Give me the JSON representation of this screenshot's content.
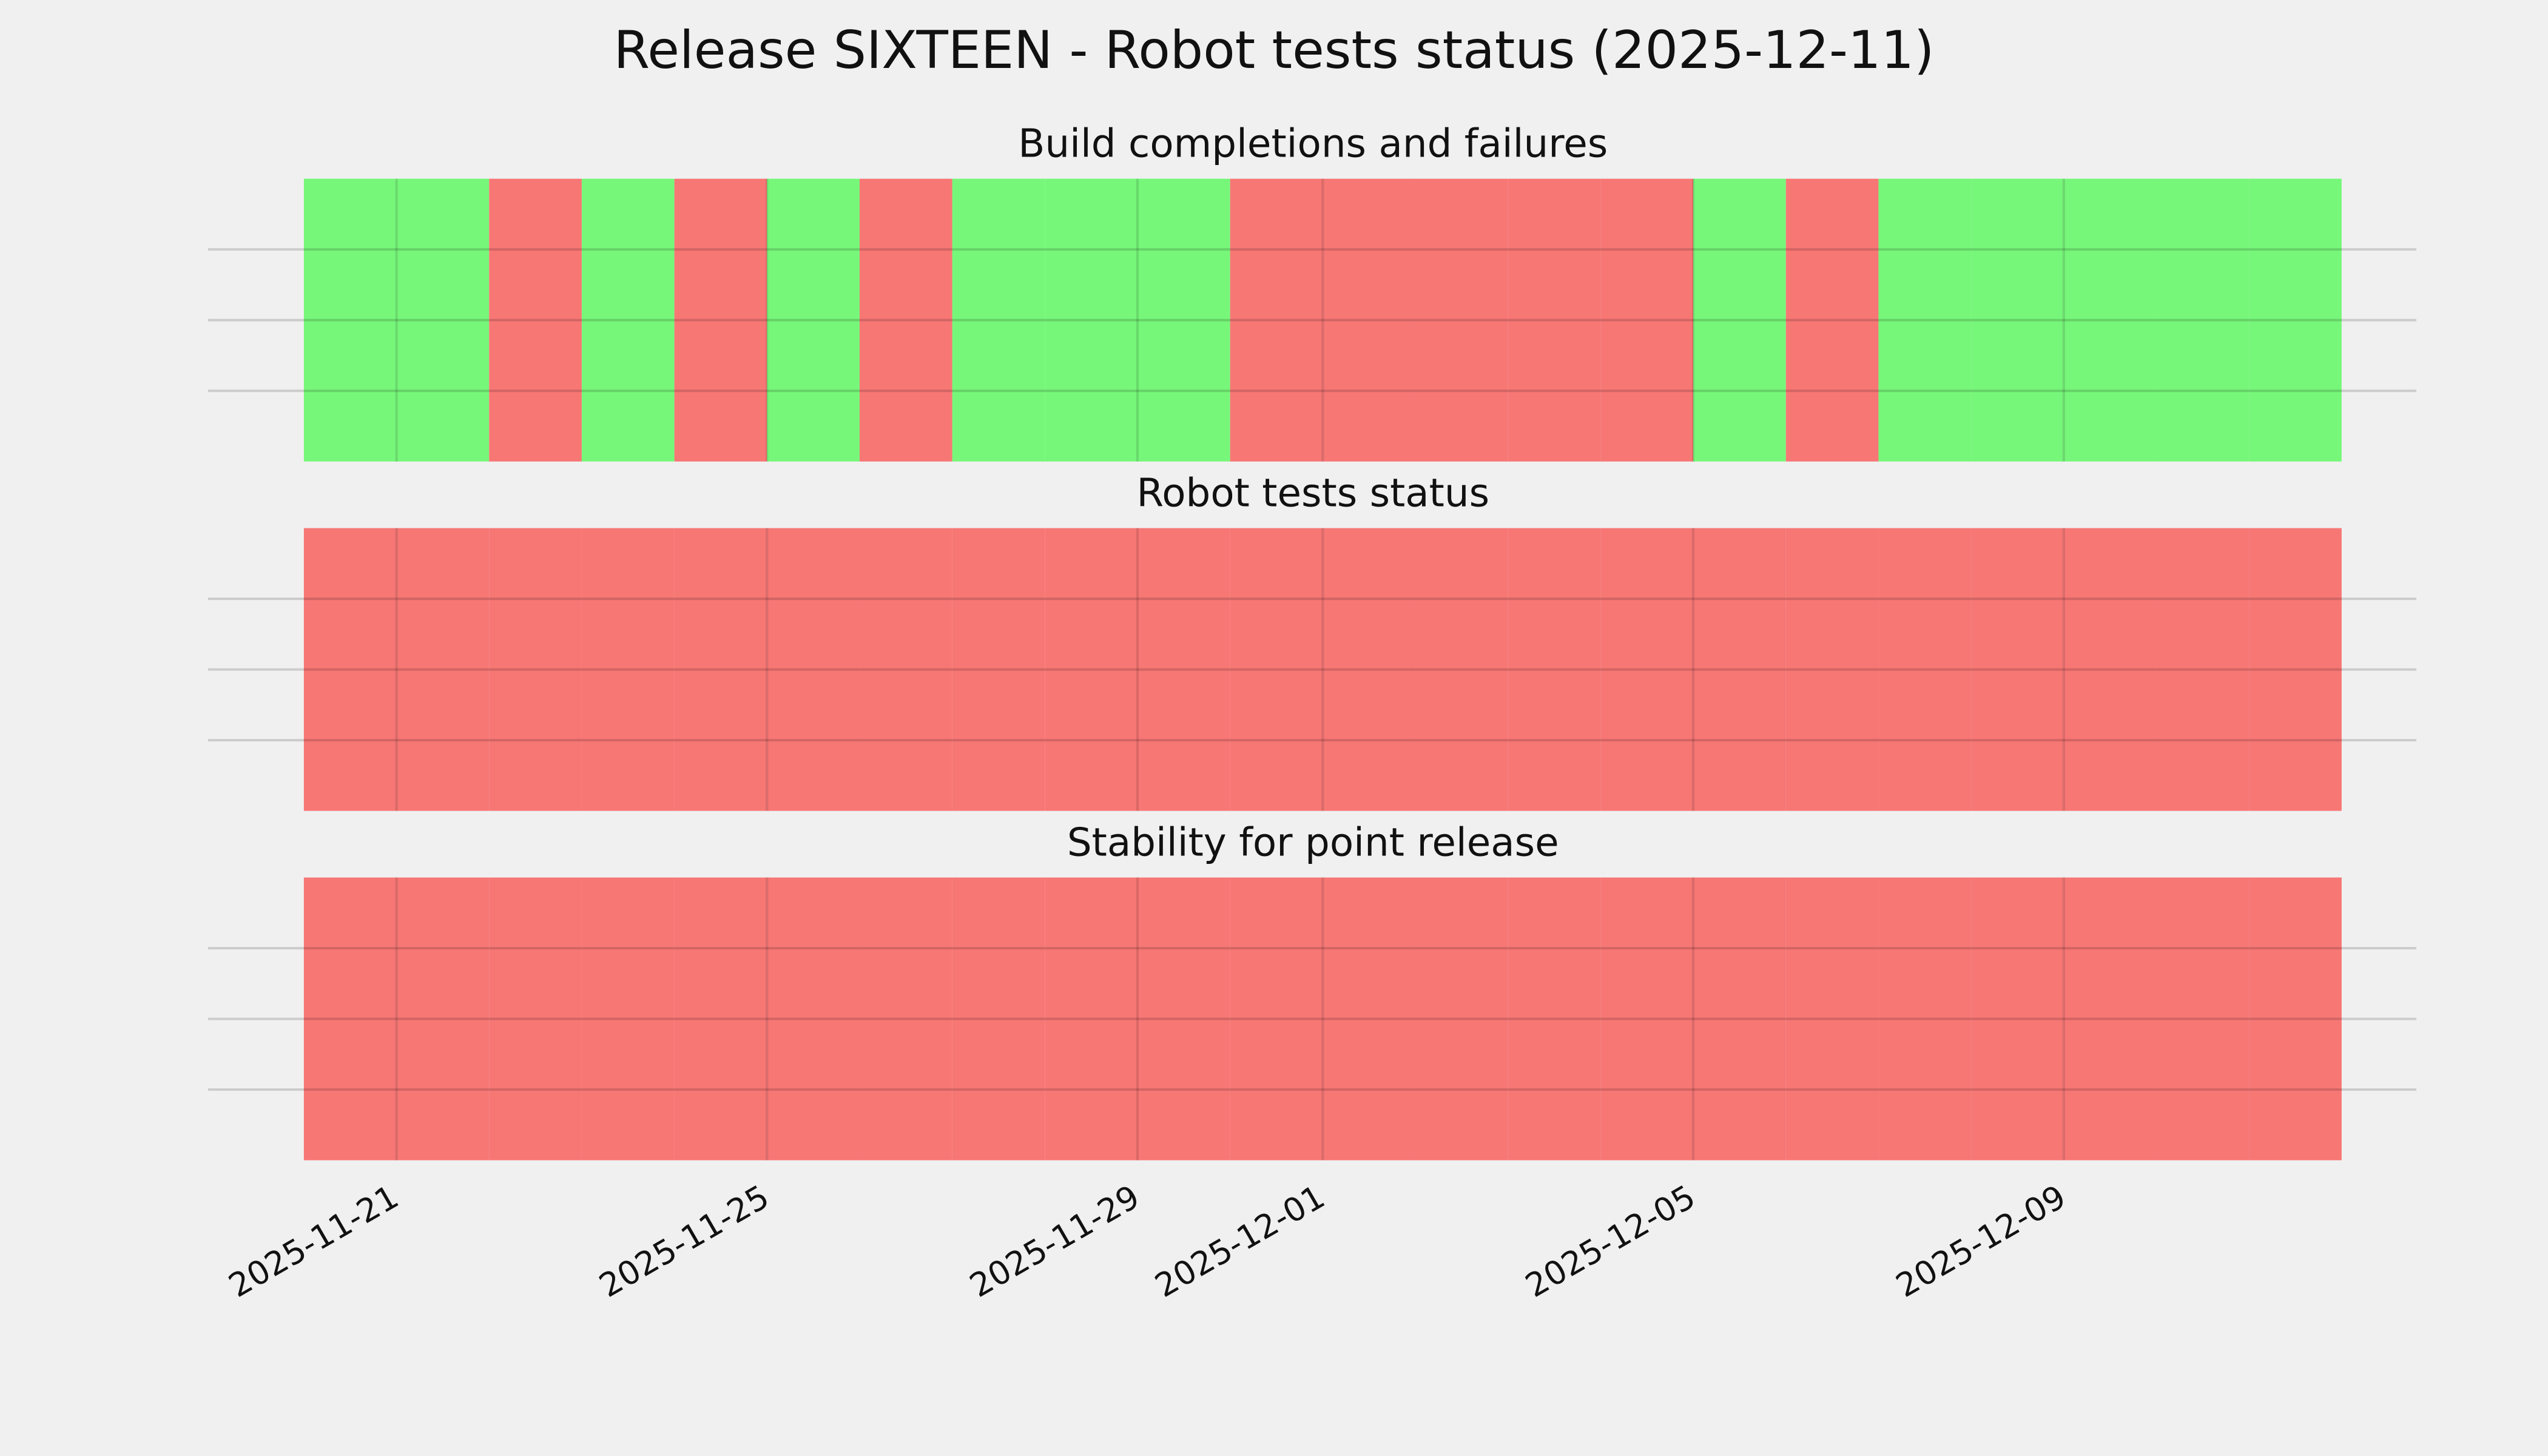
{
  "chart_data": {
    "type": "timeline",
    "title": "Release SIXTEEN - Robot tests status (2025-12-11)",
    "x": [
      "2025-11-20",
      "2025-11-21",
      "2025-11-22",
      "2025-11-23",
      "2025-11-24",
      "2025-11-25",
      "2025-11-26",
      "2025-11-27",
      "2025-11-28",
      "2025-11-29",
      "2025-11-30",
      "2025-12-01",
      "2025-12-02",
      "2025-12-03",
      "2025-12-04",
      "2025-12-05",
      "2025-12-06",
      "2025-12-07",
      "2025-12-08",
      "2025-12-09",
      "2025-12-10",
      "2025-12-11"
    ],
    "xlim": [
      "2025-11-19",
      "2025-12-13"
    ],
    "xticks": [
      "2025-11-21",
      "2025-11-25",
      "2025-11-29",
      "2025-12-01",
      "2025-12-05",
      "2025-12-09"
    ],
    "ylim": [
      0,
      1
    ],
    "yticks": [
      0.25,
      0.5,
      0.75
    ],
    "grid": true,
    "panels": [
      {
        "title": "Build completions and failures",
        "colors": [
          "#77f77a",
          "#77f77a",
          "#f77775",
          "#77f77a",
          "#f77775",
          "#77f77a",
          "#f77775",
          "#77f77a",
          "#77f77a",
          "#77f77a",
          "#f77775",
          "#f77775",
          "#f77775",
          "#f77775",
          "#f77775",
          "#77f77a",
          "#f77775",
          "#77f77a",
          "#77f77a",
          "#77f77a",
          "#77f77a",
          "#77f77a"
        ]
      },
      {
        "title": "Robot tests status",
        "colors": [
          "#f77775",
          "#f77775",
          "#f77775",
          "#f77775",
          "#f77775",
          "#f77775",
          "#f77775",
          "#f77775",
          "#f77775",
          "#f77775",
          "#f77775",
          "#f77775",
          "#f77775",
          "#f77775",
          "#f77775",
          "#f77775",
          "#f77775",
          "#f77775",
          "#f77775",
          "#f77775",
          "#f77775",
          "#f77775"
        ]
      },
      {
        "title": "Stability for point release",
        "colors": [
          "#f77775",
          "#f77775",
          "#f77775",
          "#f77775",
          "#f77775",
          "#f77775",
          "#f77775",
          "#f77775",
          "#f77775",
          "#f77775",
          "#f77775",
          "#f77775",
          "#f77775",
          "#f77775",
          "#f77775",
          "#f77775",
          "#f77775",
          "#f77775",
          "#f77775",
          "#f77775",
          "#f77775",
          "#f77775"
        ]
      }
    ]
  }
}
